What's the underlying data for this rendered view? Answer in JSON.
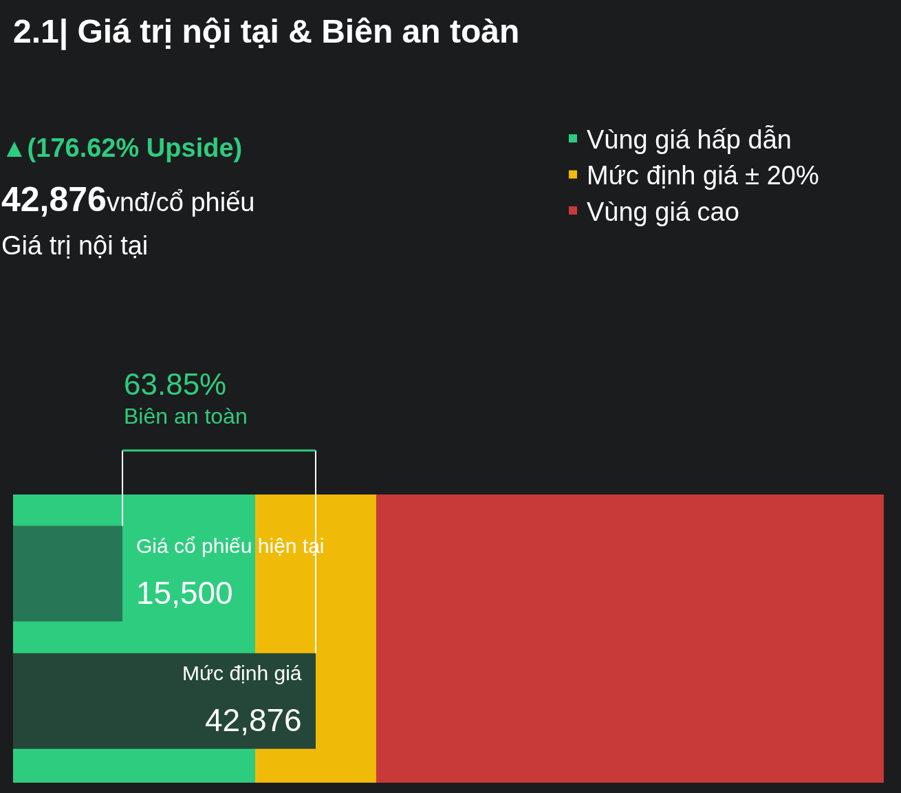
{
  "chart_data": {
    "type": "bar",
    "orientation": "horizontal",
    "title": "2.1| Giá trị nội tại & Biên an toàn",
    "categories": [
      "Giá cổ phiếu hiện tại",
      "Mức định giá"
    ],
    "values": [
      15500,
      42876
    ],
    "value_labels": [
      "15,500",
      "42,876"
    ],
    "colors": [
      "#277756",
      "#25473a"
    ],
    "xlim": [
      0,
      123370
    ],
    "bands": [
      {
        "axis": "x",
        "from": 0,
        "to": 34300.8,
        "label": "Vùng giá hấp dẫn",
        "color": "#2ecc7f"
      },
      {
        "axis": "x",
        "from": 34300.8,
        "to": 51451.2,
        "label": "Mức định giá ± 20%",
        "color": "#f0bb08"
      },
      {
        "axis": "x",
        "from": 51451.2,
        "to": 123370,
        "label": "Vùng giá cao",
        "color": "#c83a3a"
      }
    ],
    "annotations": [
      "▲(176.62% Upside)",
      "42,876vnđ/cổ phiếu",
      "Giá trị nội tại",
      "63.85%\nBiên an toàn"
    ],
    "ref_lines": [
      {
        "axis": "x",
        "value": 15500,
        "color": "#ffffff"
      },
      {
        "axis": "x",
        "value": 42876,
        "color": "#ffffff"
      }
    ],
    "legend": "top right"
  }
}
